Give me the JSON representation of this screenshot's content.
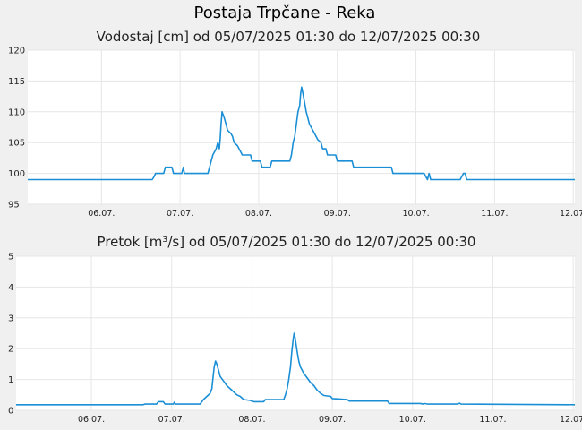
{
  "title": "Postaja Trpčane - Reka",
  "chart_data": [
    {
      "type": "line",
      "title": "Vodostaj [cm] od 05/07/2025 01:30 do 12/07/2025 00:30",
      "ylim": [
        95,
        120
      ],
      "yticks": [
        "95",
        "100",
        "105",
        "110",
        "115",
        "120"
      ],
      "xlim": [
        0,
        167
      ],
      "xticks": [
        {
          "label": "06.07.",
          "x": 22.5
        },
        {
          "label": "07.07.",
          "x": 46.5
        },
        {
          "label": "08.07.",
          "x": 70.5
        },
        {
          "label": "09.07.",
          "x": 94.5
        },
        {
          "label": "10.07.",
          "x": 118.5
        },
        {
          "label": "11.07.",
          "x": 142.5
        },
        {
          "label": "12.07.",
          "x": 166.5
        }
      ],
      "grid": true,
      "color": "#1a8fd6",
      "points": [
        [
          0,
          99
        ],
        [
          38,
          99
        ],
        [
          38.6,
          99.5
        ],
        [
          39,
          100
        ],
        [
          41.5,
          100
        ],
        [
          42,
          101
        ],
        [
          44,
          101
        ],
        [
          44.5,
          100
        ],
        [
          47,
          100
        ],
        [
          47.5,
          101
        ],
        [
          47.8,
          100
        ],
        [
          55,
          100
        ],
        [
          56,
          102
        ],
        [
          56.5,
          103
        ],
        [
          57.5,
          104
        ],
        [
          58,
          105
        ],
        [
          58.5,
          104
        ],
        [
          58.8,
          106
        ],
        [
          59,
          108
        ],
        [
          59.3,
          110
        ],
        [
          60,
          109
        ],
        [
          60.5,
          108
        ],
        [
          61,
          107
        ],
        [
          62,
          106.5
        ],
        [
          62.5,
          106
        ],
        [
          63,
          105
        ],
        [
          64,
          104.5
        ],
        [
          65,
          103.5
        ],
        [
          65.5,
          103
        ],
        [
          68,
          103
        ],
        [
          68.5,
          102
        ],
        [
          71,
          102
        ],
        [
          71.5,
          101
        ],
        [
          74,
          101
        ],
        [
          74.5,
          102
        ],
        [
          80,
          102
        ],
        [
          80.5,
          103
        ],
        [
          81,
          105
        ],
        [
          81.5,
          106
        ],
        [
          82,
          108
        ],
        [
          82.5,
          110
        ],
        [
          83,
          111
        ],
        [
          83.3,
          113
        ],
        [
          83.6,
          114
        ],
        [
          84,
          113
        ],
        [
          84.5,
          111.5
        ],
        [
          85,
          110
        ],
        [
          85.5,
          109
        ],
        [
          86,
          108
        ],
        [
          86.5,
          107.5
        ],
        [
          87,
          107
        ],
        [
          88,
          106
        ],
        [
          88.5,
          105.5
        ],
        [
          89.5,
          105
        ],
        [
          90,
          104
        ],
        [
          91,
          104
        ],
        [
          91.5,
          103
        ],
        [
          94,
          103
        ],
        [
          94.5,
          102
        ],
        [
          99,
          102
        ],
        [
          99.5,
          101
        ],
        [
          111,
          101
        ],
        [
          111.5,
          100
        ],
        [
          121,
          100
        ],
        [
          121.5,
          99.5
        ],
        [
          122,
          99
        ],
        [
          122.5,
          100
        ],
        [
          123,
          99
        ],
        [
          132,
          99
        ],
        [
          132.5,
          99.5
        ],
        [
          133,
          100
        ],
        [
          133.5,
          100
        ],
        [
          134,
          99
        ],
        [
          167,
          99
        ]
      ]
    },
    {
      "type": "line",
      "title": "Pretok [m³/s] od 05/07/2025 01:30 do 12/07/2025 00:30",
      "ylim": [
        0,
        5
      ],
      "yticks": [
        "0",
        "1",
        "2",
        "3",
        "4",
        "5"
      ],
      "xlim": [
        0,
        167
      ],
      "xticks": [
        {
          "label": "06.07.",
          "x": 22.5
        },
        {
          "label": "07.07.",
          "x": 46.5
        },
        {
          "label": "08.07.",
          "x": 70.5
        },
        {
          "label": "09.07.",
          "x": 94.5
        },
        {
          "label": "10.07.",
          "x": 118.5
        },
        {
          "label": "11.07.",
          "x": 142.5
        },
        {
          "label": "12.07.",
          "x": 166.5
        }
      ],
      "grid": true,
      "color": "#1a8fd6",
      "points": [
        [
          0,
          0.18
        ],
        [
          38,
          0.18
        ],
        [
          38.5,
          0.2
        ],
        [
          42,
          0.2
        ],
        [
          42.5,
          0.28
        ],
        [
          44,
          0.28
        ],
        [
          44.5,
          0.2
        ],
        [
          47,
          0.2
        ],
        [
          47.3,
          0.26
        ],
        [
          47.6,
          0.2
        ],
        [
          55,
          0.2
        ],
        [
          56,
          0.35
        ],
        [
          57,
          0.45
        ],
        [
          58,
          0.55
        ],
        [
          58.5,
          0.7
        ],
        [
          58.8,
          1.0
        ],
        [
          59.2,
          1.4
        ],
        [
          59.6,
          1.6
        ],
        [
          60,
          1.5
        ],
        [
          60.5,
          1.3
        ],
        [
          61,
          1.1
        ],
        [
          62,
          0.95
        ],
        [
          63,
          0.8
        ],
        [
          64,
          0.7
        ],
        [
          65,
          0.6
        ],
        [
          66,
          0.5
        ],
        [
          67,
          0.45
        ],
        [
          68,
          0.35
        ],
        [
          70,
          0.32
        ],
        [
          71,
          0.28
        ],
        [
          74,
          0.28
        ],
        [
          74.5,
          0.35
        ],
        [
          80,
          0.35
        ],
        [
          80.5,
          0.5
        ],
        [
          81,
          0.7
        ],
        [
          81.5,
          1.0
        ],
        [
          82,
          1.4
        ],
        [
          82.4,
          1.9
        ],
        [
          82.8,
          2.3
        ],
        [
          83.1,
          2.5
        ],
        [
          83.4,
          2.35
        ],
        [
          84,
          1.9
        ],
        [
          84.5,
          1.6
        ],
        [
          85,
          1.4
        ],
        [
          86,
          1.2
        ],
        [
          87,
          1.05
        ],
        [
          88,
          0.9
        ],
        [
          89,
          0.8
        ],
        [
          90,
          0.65
        ],
        [
          91,
          0.55
        ],
        [
          92,
          0.48
        ],
        [
          94,
          0.45
        ],
        [
          94.5,
          0.38
        ],
        [
          99,
          0.35
        ],
        [
          99.5,
          0.3
        ],
        [
          111,
          0.3
        ],
        [
          111.5,
          0.22
        ],
        [
          121,
          0.22
        ],
        [
          121.5,
          0.2
        ],
        [
          122,
          0.22
        ],
        [
          123,
          0.2
        ],
        [
          132,
          0.2
        ],
        [
          132.5,
          0.23
        ],
        [
          133,
          0.2
        ],
        [
          167,
          0.18
        ]
      ]
    }
  ]
}
